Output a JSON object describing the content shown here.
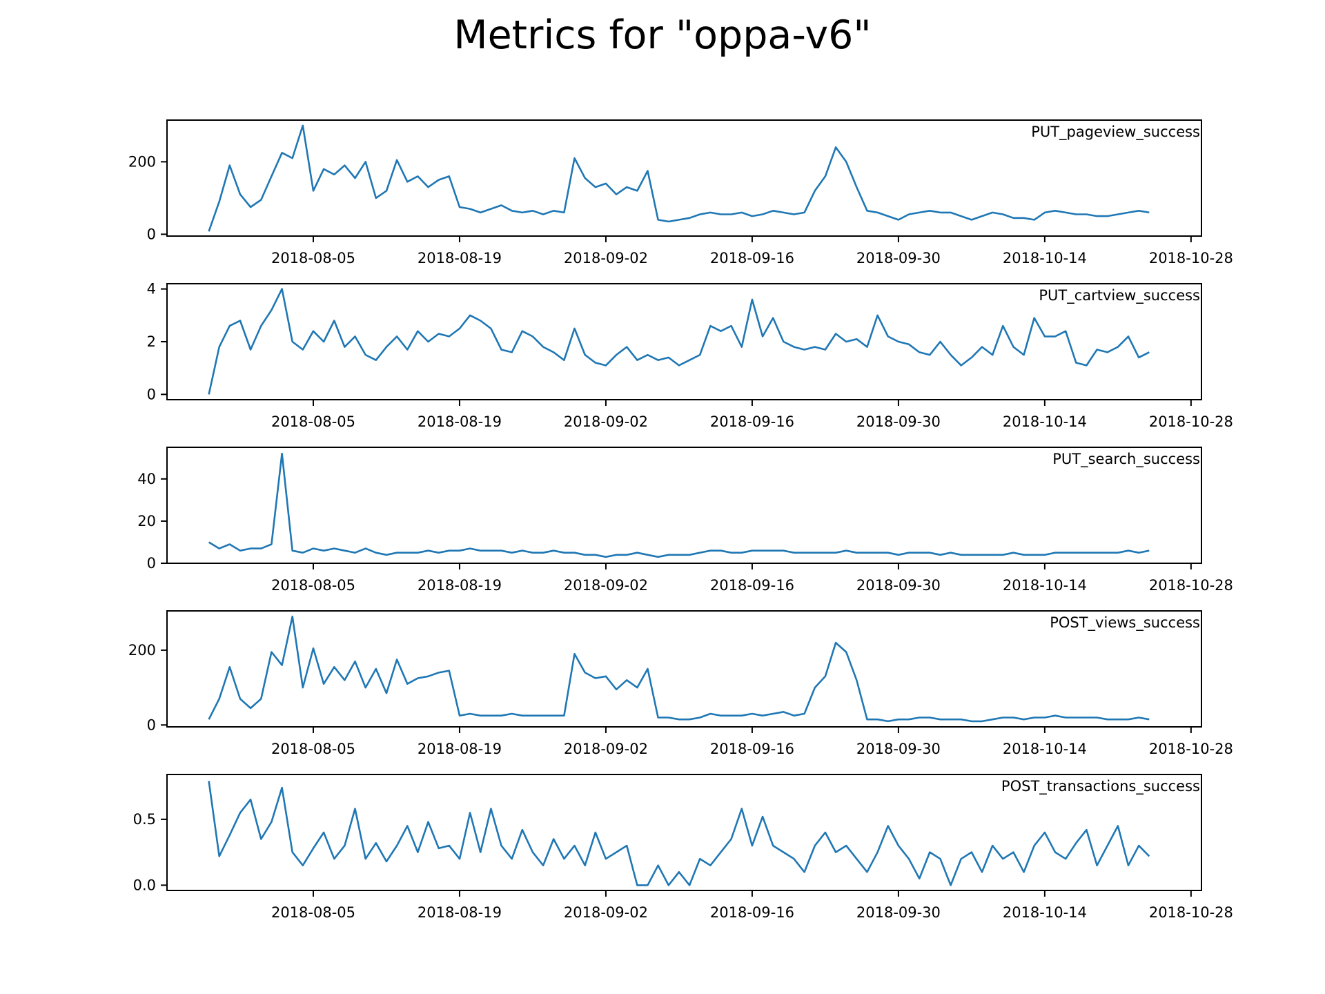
{
  "title": "Metrics for \"oppa-v6\"",
  "line_color": "#1f77b4",
  "chart_data": [
    {
      "type": "line",
      "name": "PUT_pageview_success",
      "x_ticks": [
        "2018-08-05",
        "2018-08-19",
        "2018-09-02",
        "2018-09-16",
        "2018-09-30",
        "2018-10-14",
        "2018-10-28"
      ],
      "x_range": [
        "2018-07-22",
        "2018-10-29"
      ],
      "y_ticks": [
        "0",
        "200"
      ],
      "ylim": [
        -5,
        315
      ],
      "x": [
        "2018-07-26",
        "2018-07-27",
        "2018-07-28",
        "2018-07-29",
        "2018-07-30",
        "2018-07-31",
        "2018-08-01",
        "2018-08-02",
        "2018-08-03",
        "2018-08-04",
        "2018-08-05",
        "2018-08-06",
        "2018-08-07",
        "2018-08-08",
        "2018-08-09",
        "2018-08-10",
        "2018-08-11",
        "2018-08-12",
        "2018-08-13",
        "2018-08-14",
        "2018-08-15",
        "2018-08-16",
        "2018-08-17",
        "2018-08-18",
        "2018-08-19",
        "2018-08-20",
        "2018-08-21",
        "2018-08-22",
        "2018-08-23",
        "2018-08-24",
        "2018-08-25",
        "2018-08-26",
        "2018-08-27",
        "2018-08-28",
        "2018-08-29",
        "2018-08-30",
        "2018-08-31",
        "2018-09-01",
        "2018-09-02",
        "2018-09-03",
        "2018-09-04",
        "2018-09-05",
        "2018-09-06",
        "2018-09-07",
        "2018-09-08",
        "2018-09-09",
        "2018-09-10",
        "2018-09-11",
        "2018-09-12",
        "2018-09-13",
        "2018-09-14",
        "2018-09-15",
        "2018-09-16",
        "2018-09-17",
        "2018-09-18",
        "2018-09-19",
        "2018-09-20",
        "2018-09-21",
        "2018-09-22",
        "2018-09-23",
        "2018-09-24",
        "2018-09-25",
        "2018-09-26",
        "2018-09-27",
        "2018-09-28",
        "2018-09-29",
        "2018-09-30",
        "2018-10-01",
        "2018-10-02",
        "2018-10-03",
        "2018-10-04",
        "2018-10-05",
        "2018-10-06",
        "2018-10-07",
        "2018-10-08",
        "2018-10-09",
        "2018-10-10",
        "2018-10-11",
        "2018-10-12",
        "2018-10-13",
        "2018-10-14",
        "2018-10-15",
        "2018-10-16",
        "2018-10-17",
        "2018-10-18",
        "2018-10-19",
        "2018-10-20",
        "2018-10-21",
        "2018-10-22",
        "2018-10-23",
        "2018-10-24"
      ],
      "y": [
        8,
        90,
        190,
        110,
        75,
        95,
        160,
        225,
        210,
        300,
        120,
        180,
        165,
        190,
        155,
        200,
        100,
        120,
        205,
        145,
        160,
        130,
        150,
        160,
        75,
        70,
        60,
        70,
        80,
        65,
        60,
        65,
        55,
        65,
        60,
        210,
        155,
        130,
        140,
        110,
        130,
        120,
        175,
        40,
        35,
        40,
        45,
        55,
        60,
        55,
        55,
        60,
        50,
        55,
        65,
        60,
        55,
        60,
        120,
        160,
        240,
        200,
        130,
        65,
        60,
        50,
        40,
        55,
        60,
        65,
        60,
        60,
        50,
        40,
        50,
        60,
        55,
        45,
        45,
        40,
        60,
        65,
        60,
        55,
        55,
        50,
        50,
        55,
        60,
        65,
        60
      ]
    },
    {
      "type": "line",
      "name": "PUT_cartview_success",
      "x_ticks": [
        "2018-08-05",
        "2018-08-19",
        "2018-09-02",
        "2018-09-16",
        "2018-09-30",
        "2018-10-14",
        "2018-10-28"
      ],
      "x_range": [
        "2018-07-22",
        "2018-10-29"
      ],
      "y_ticks": [
        "0",
        "2",
        "4"
      ],
      "ylim": [
        -0.2,
        4.2
      ],
      "x": [
        "2018-07-26",
        "2018-07-27",
        "2018-07-28",
        "2018-07-29",
        "2018-07-30",
        "2018-07-31",
        "2018-08-01",
        "2018-08-02",
        "2018-08-03",
        "2018-08-04",
        "2018-08-05",
        "2018-08-06",
        "2018-08-07",
        "2018-08-08",
        "2018-08-09",
        "2018-08-10",
        "2018-08-11",
        "2018-08-12",
        "2018-08-13",
        "2018-08-14",
        "2018-08-15",
        "2018-08-16",
        "2018-08-17",
        "2018-08-18",
        "2018-08-19",
        "2018-08-20",
        "2018-08-21",
        "2018-08-22",
        "2018-08-23",
        "2018-08-24",
        "2018-08-25",
        "2018-08-26",
        "2018-08-27",
        "2018-08-28",
        "2018-08-29",
        "2018-08-30",
        "2018-08-31",
        "2018-09-01",
        "2018-09-02",
        "2018-09-03",
        "2018-09-04",
        "2018-09-05",
        "2018-09-06",
        "2018-09-07",
        "2018-09-08",
        "2018-09-09",
        "2018-09-10",
        "2018-09-11",
        "2018-09-12",
        "2018-09-13",
        "2018-09-14",
        "2018-09-15",
        "2018-09-16",
        "2018-09-17",
        "2018-09-18",
        "2018-09-19",
        "2018-09-20",
        "2018-09-21",
        "2018-09-22",
        "2018-09-23",
        "2018-09-24",
        "2018-09-25",
        "2018-09-26",
        "2018-09-27",
        "2018-09-28",
        "2018-09-29",
        "2018-09-30",
        "2018-10-01",
        "2018-10-02",
        "2018-10-03",
        "2018-10-04",
        "2018-10-05",
        "2018-10-06",
        "2018-10-07",
        "2018-10-08",
        "2018-10-09",
        "2018-10-10",
        "2018-10-11",
        "2018-10-12",
        "2018-10-13",
        "2018-10-14",
        "2018-10-15",
        "2018-10-16",
        "2018-10-17",
        "2018-10-18",
        "2018-10-19",
        "2018-10-20",
        "2018-10-21",
        "2018-10-22",
        "2018-10-23",
        "2018-10-24"
      ],
      "y": [
        0,
        1.8,
        2.6,
        2.8,
        1.7,
        2.6,
        3.2,
        4.0,
        2.0,
        1.7,
        2.4,
        2.0,
        2.8,
        1.8,
        2.2,
        1.5,
        1.3,
        1.8,
        2.2,
        1.7,
        2.4,
        2.0,
        2.3,
        2.2,
        2.5,
        3.0,
        2.8,
        2.5,
        1.7,
        1.6,
        2.4,
        2.2,
        1.8,
        1.6,
        1.3,
        2.5,
        1.5,
        1.2,
        1.1,
        1.5,
        1.8,
        1.3,
        1.5,
        1.3,
        1.4,
        1.1,
        1.3,
        1.5,
        2.6,
        2.4,
        2.6,
        1.8,
        3.6,
        2.2,
        2.9,
        2.0,
        1.8,
        1.7,
        1.8,
        1.7,
        2.3,
        2.0,
        2.1,
        1.8,
        3.0,
        2.2,
        2.0,
        1.9,
        1.6,
        1.5,
        2.0,
        1.5,
        1.1,
        1.4,
        1.8,
        1.5,
        2.6,
        1.8,
        1.5,
        2.9,
        2.2,
        2.2,
        2.4,
        1.2,
        1.1,
        1.7,
        1.6,
        1.8,
        2.2,
        1.4,
        1.6
      ]
    },
    {
      "type": "line",
      "name": "PUT_search_success",
      "x_ticks": [
        "2018-08-05",
        "2018-08-19",
        "2018-09-02",
        "2018-09-16",
        "2018-09-30",
        "2018-10-14",
        "2018-10-28"
      ],
      "x_range": [
        "2018-07-22",
        "2018-10-29"
      ],
      "y_ticks": [
        "0",
        "20",
        "40"
      ],
      "ylim": [
        0,
        55
      ],
      "x": [
        "2018-07-26",
        "2018-07-27",
        "2018-07-28",
        "2018-07-29",
        "2018-07-30",
        "2018-07-31",
        "2018-08-01",
        "2018-08-02",
        "2018-08-03",
        "2018-08-04",
        "2018-08-05",
        "2018-08-06",
        "2018-08-07",
        "2018-08-08",
        "2018-08-09",
        "2018-08-10",
        "2018-08-11",
        "2018-08-12",
        "2018-08-13",
        "2018-08-14",
        "2018-08-15",
        "2018-08-16",
        "2018-08-17",
        "2018-08-18",
        "2018-08-19",
        "2018-08-20",
        "2018-08-21",
        "2018-08-22",
        "2018-08-23",
        "2018-08-24",
        "2018-08-25",
        "2018-08-26",
        "2018-08-27",
        "2018-08-28",
        "2018-08-29",
        "2018-08-30",
        "2018-08-31",
        "2018-09-01",
        "2018-09-02",
        "2018-09-03",
        "2018-09-04",
        "2018-09-05",
        "2018-09-06",
        "2018-09-07",
        "2018-09-08",
        "2018-09-09",
        "2018-09-10",
        "2018-09-11",
        "2018-09-12",
        "2018-09-13",
        "2018-09-14",
        "2018-09-15",
        "2018-09-16",
        "2018-09-17",
        "2018-09-18",
        "2018-09-19",
        "2018-09-20",
        "2018-09-21",
        "2018-09-22",
        "2018-09-23",
        "2018-09-24",
        "2018-09-25",
        "2018-09-26",
        "2018-09-27",
        "2018-09-28",
        "2018-09-29",
        "2018-09-30",
        "2018-10-01",
        "2018-10-02",
        "2018-10-03",
        "2018-10-04",
        "2018-10-05",
        "2018-10-06",
        "2018-10-07",
        "2018-10-08",
        "2018-10-09",
        "2018-10-10",
        "2018-10-11",
        "2018-10-12",
        "2018-10-13",
        "2018-10-14",
        "2018-10-15",
        "2018-10-16",
        "2018-10-17",
        "2018-10-18",
        "2018-10-19",
        "2018-10-20",
        "2018-10-21",
        "2018-10-22",
        "2018-10-23",
        "2018-10-24"
      ],
      "y": [
        10,
        7,
        9,
        6,
        7,
        7,
        9,
        52,
        6,
        5,
        7,
        6,
        7,
        6,
        5,
        7,
        5,
        4,
        5,
        5,
        5,
        6,
        5,
        6,
        6,
        7,
        6,
        6,
        6,
        5,
        6,
        5,
        5,
        6,
        5,
        5,
        4,
        4,
        3,
        4,
        4,
        5,
        4,
        3,
        4,
        4,
        4,
        5,
        6,
        6,
        5,
        5,
        6,
        6,
        6,
        6,
        5,
        5,
        5,
        5,
        5,
        6,
        5,
        5,
        5,
        5,
        4,
        5,
        5,
        5,
        4,
        5,
        4,
        4,
        4,
        4,
        4,
        5,
        4,
        4,
        4,
        5,
        5,
        5,
        5,
        5,
        5,
        5,
        6,
        5,
        6
      ]
    },
    {
      "type": "line",
      "name": "POST_views_success",
      "x_ticks": [
        "2018-08-05",
        "2018-08-19",
        "2018-09-02",
        "2018-09-16",
        "2018-09-30",
        "2018-10-14",
        "2018-10-28"
      ],
      "x_range": [
        "2018-07-22",
        "2018-10-29"
      ],
      "y_ticks": [
        "0",
        "200"
      ],
      "ylim": [
        -5,
        305
      ],
      "x": [
        "2018-07-26",
        "2018-07-27",
        "2018-07-28",
        "2018-07-29",
        "2018-07-30",
        "2018-07-31",
        "2018-08-01",
        "2018-08-02",
        "2018-08-03",
        "2018-08-04",
        "2018-08-05",
        "2018-08-06",
        "2018-08-07",
        "2018-08-08",
        "2018-08-09",
        "2018-08-10",
        "2018-08-11",
        "2018-08-12",
        "2018-08-13",
        "2018-08-14",
        "2018-08-15",
        "2018-08-16",
        "2018-08-17",
        "2018-08-18",
        "2018-08-19",
        "2018-08-20",
        "2018-08-21",
        "2018-08-22",
        "2018-08-23",
        "2018-08-24",
        "2018-08-25",
        "2018-08-26",
        "2018-08-27",
        "2018-08-28",
        "2018-08-29",
        "2018-08-30",
        "2018-08-31",
        "2018-09-01",
        "2018-09-02",
        "2018-09-03",
        "2018-09-04",
        "2018-09-05",
        "2018-09-06",
        "2018-09-07",
        "2018-09-08",
        "2018-09-09",
        "2018-09-10",
        "2018-09-11",
        "2018-09-12",
        "2018-09-13",
        "2018-09-14",
        "2018-09-15",
        "2018-09-16",
        "2018-09-17",
        "2018-09-18",
        "2018-09-19",
        "2018-09-20",
        "2018-09-21",
        "2018-09-22",
        "2018-09-23",
        "2018-09-24",
        "2018-09-25",
        "2018-09-26",
        "2018-09-27",
        "2018-09-28",
        "2018-09-29",
        "2018-09-30",
        "2018-10-01",
        "2018-10-02",
        "2018-10-03",
        "2018-10-04",
        "2018-10-05",
        "2018-10-06",
        "2018-10-07",
        "2018-10-08",
        "2018-10-09",
        "2018-10-10",
        "2018-10-11",
        "2018-10-12",
        "2018-10-13",
        "2018-10-14",
        "2018-10-15",
        "2018-10-16",
        "2018-10-17",
        "2018-10-18",
        "2018-10-19",
        "2018-10-20",
        "2018-10-21",
        "2018-10-22",
        "2018-10-23",
        "2018-10-24"
      ],
      "y": [
        15,
        70,
        155,
        70,
        45,
        70,
        195,
        160,
        290,
        100,
        205,
        110,
        155,
        120,
        170,
        100,
        150,
        85,
        175,
        110,
        125,
        130,
        140,
        145,
        25,
        30,
        25,
        25,
        25,
        30,
        25,
        25,
        25,
        25,
        25,
        190,
        140,
        125,
        130,
        95,
        120,
        100,
        150,
        20,
        20,
        15,
        15,
        20,
        30,
        25,
        25,
        25,
        30,
        25,
        30,
        35,
        25,
        30,
        100,
        130,
        220,
        195,
        120,
        15,
        15,
        10,
        15,
        15,
        20,
        20,
        15,
        15,
        15,
        10,
        10,
        15,
        20,
        20,
        15,
        20,
        20,
        25,
        20,
        20,
        20,
        20,
        15,
        15,
        15,
        20,
        15
      ]
    },
    {
      "type": "line",
      "name": "POST_transactions_success",
      "x_ticks": [
        "2018-08-05",
        "2018-08-19",
        "2018-09-02",
        "2018-09-16",
        "2018-09-30",
        "2018-10-14",
        "2018-10-28"
      ],
      "x_range": [
        "2018-07-22",
        "2018-10-29"
      ],
      "y_ticks": [
        "0.0",
        "0.5"
      ],
      "ylim": [
        -0.04,
        0.84
      ],
      "x": [
        "2018-07-26",
        "2018-07-27",
        "2018-07-28",
        "2018-07-29",
        "2018-07-30",
        "2018-07-31",
        "2018-08-01",
        "2018-08-02",
        "2018-08-03",
        "2018-08-04",
        "2018-08-05",
        "2018-08-06",
        "2018-08-07",
        "2018-08-08",
        "2018-08-09",
        "2018-08-10",
        "2018-08-11",
        "2018-08-12",
        "2018-08-13",
        "2018-08-14",
        "2018-08-15",
        "2018-08-16",
        "2018-08-17",
        "2018-08-18",
        "2018-08-19",
        "2018-08-20",
        "2018-08-21",
        "2018-08-22",
        "2018-08-23",
        "2018-08-24",
        "2018-08-25",
        "2018-08-26",
        "2018-08-27",
        "2018-08-28",
        "2018-08-29",
        "2018-08-30",
        "2018-08-31",
        "2018-09-01",
        "2018-09-02",
        "2018-09-03",
        "2018-09-04",
        "2018-09-05",
        "2018-09-06",
        "2018-09-07",
        "2018-09-08",
        "2018-09-09",
        "2018-09-10",
        "2018-09-11",
        "2018-09-12",
        "2018-09-13",
        "2018-09-14",
        "2018-09-15",
        "2018-09-16",
        "2018-09-17",
        "2018-09-18",
        "2018-09-19",
        "2018-09-20",
        "2018-09-21",
        "2018-09-22",
        "2018-09-23",
        "2018-09-24",
        "2018-09-25",
        "2018-09-26",
        "2018-09-27",
        "2018-09-28",
        "2018-09-29",
        "2018-09-30",
        "2018-10-01",
        "2018-10-02",
        "2018-10-03",
        "2018-10-04",
        "2018-10-05",
        "2018-10-06",
        "2018-10-07",
        "2018-10-08",
        "2018-10-09",
        "2018-10-10",
        "2018-10-11",
        "2018-10-12",
        "2018-10-13",
        "2018-10-14",
        "2018-10-15",
        "2018-10-16",
        "2018-10-17",
        "2018-10-18",
        "2018-10-19",
        "2018-10-20",
        "2018-10-21",
        "2018-10-22",
        "2018-10-23",
        "2018-10-24"
      ],
      "y": [
        0.79,
        0.22,
        0.38,
        0.55,
        0.65,
        0.35,
        0.48,
        0.74,
        0.25,
        0.15,
        0.28,
        0.4,
        0.2,
        0.3,
        0.58,
        0.2,
        0.32,
        0.18,
        0.3,
        0.45,
        0.25,
        0.48,
        0.28,
        0.3,
        0.2,
        0.55,
        0.25,
        0.58,
        0.3,
        0.2,
        0.42,
        0.25,
        0.15,
        0.35,
        0.2,
        0.3,
        0.15,
        0.4,
        0.2,
        0.25,
        0.3,
        0.0,
        0.0,
        0.15,
        0.0,
        0.1,
        0.0,
        0.2,
        0.15,
        0.25,
        0.35,
        0.58,
        0.3,
        0.52,
        0.3,
        0.25,
        0.2,
        0.1,
        0.3,
        0.4,
        0.25,
        0.3,
        0.2,
        0.1,
        0.25,
        0.45,
        0.3,
        0.2,
        0.05,
        0.25,
        0.2,
        0.0,
        0.2,
        0.25,
        0.1,
        0.3,
        0.2,
        0.25,
        0.1,
        0.3,
        0.4,
        0.25,
        0.2,
        0.32,
        0.42,
        0.15,
        0.3,
        0.45,
        0.15,
        0.3,
        0.22
      ]
    }
  ]
}
